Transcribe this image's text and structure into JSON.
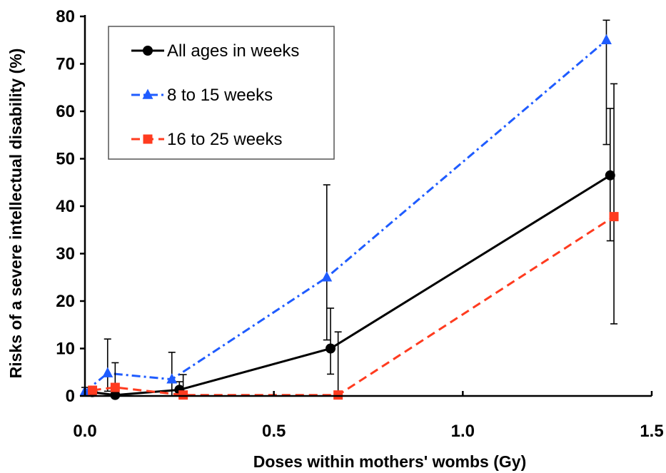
{
  "chart_data": {
    "type": "line",
    "xlabel": "Doses within mothers' wombs (Gy)",
    "ylabel": "Risks of a severe intellectual disability (%)",
    "xlim": [
      0,
      1.5
    ],
    "ylim": [
      0,
      80
    ],
    "x_ticks": [
      "0.0",
      "0.5",
      "1.0",
      "1.5"
    ],
    "y_ticks": [
      "0",
      "10",
      "20",
      "30",
      "40",
      "50",
      "60",
      "70",
      "80"
    ],
    "grid": false,
    "legend_position": "top-left",
    "series": [
      {
        "name": "All ages in weeks",
        "color": "#000000",
        "line_style": "solid",
        "marker": "circle",
        "points": [
          {
            "x": 0.02,
            "y": 0.8,
            "err_low": 0.0,
            "err_high": 1.8
          },
          {
            "x": 0.08,
            "y": 0.2,
            "err_low": 0.0,
            "err_high": 0.8
          },
          {
            "x": 0.25,
            "y": 1.3,
            "err_low": 0.0,
            "err_high": 3.0
          },
          {
            "x": 0.65,
            "y": 10.0,
            "err_low": 4.6,
            "err_high": 18.5
          },
          {
            "x": 1.39,
            "y": 46.5,
            "err_low": 32.7,
            "err_high": 60.6
          }
        ]
      },
      {
        "name": "8 to 15 weeks",
        "color": "#1f5cff",
        "line_style": "dash-dot",
        "marker": "triangle",
        "points": [
          {
            "x": 0.0,
            "y": 0.9,
            "err_low": 0.0,
            "err_high": 1.8
          },
          {
            "x": 0.06,
            "y": 4.8,
            "err_low": 1.0,
            "err_high": 12.0
          },
          {
            "x": 0.23,
            "y": 3.5,
            "err_low": 0.0,
            "err_high": 9.2
          },
          {
            "x": 0.64,
            "y": 25.0,
            "err_low": 11.8,
            "err_high": 44.5
          },
          {
            "x": 1.38,
            "y": 75.0,
            "err_low": 53.0,
            "err_high": 79.2
          }
        ]
      },
      {
        "name": "16 to 25 weeks",
        "color": "#ff3b1f",
        "line_style": "dashed",
        "marker": "square",
        "points": [
          {
            "x": 0.02,
            "y": 1.2,
            "err_low": 0.0,
            "err_high": 2.0
          },
          {
            "x": 0.08,
            "y": 1.8,
            "err_low": 0.0,
            "err_high": 7.0
          },
          {
            "x": 0.26,
            "y": 0.2,
            "err_low": 0.0,
            "err_high": 4.5
          },
          {
            "x": 0.67,
            "y": 0.2,
            "err_low": 0.0,
            "err_high": 13.5
          },
          {
            "x": 1.4,
            "y": 37.8,
            "err_low": 15.2,
            "err_high": 65.8
          }
        ]
      }
    ]
  }
}
